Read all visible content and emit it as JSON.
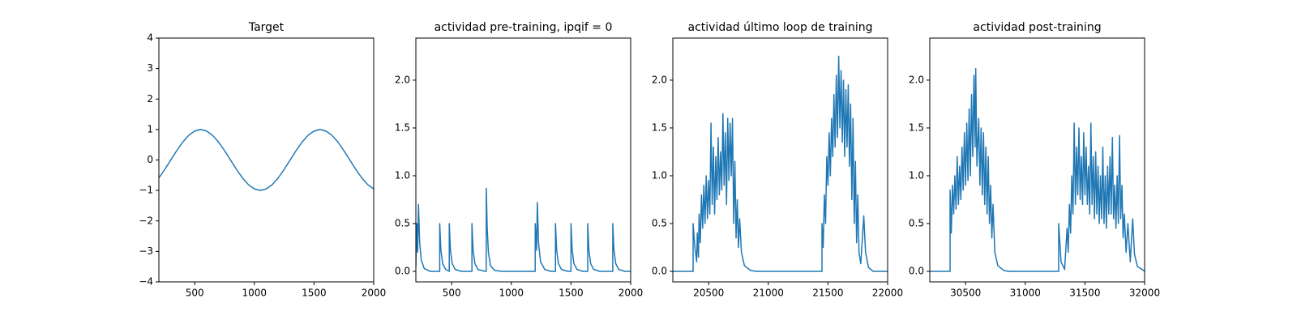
{
  "chart_data": [
    {
      "type": "line",
      "title": "Target",
      "color": "#1f77b4",
      "x": [
        200,
        250,
        300,
        350,
        400,
        450,
        500,
        550,
        600,
        650,
        700,
        750,
        800,
        850,
        900,
        950,
        1000,
        1050,
        1100,
        1150,
        1200,
        1250,
        1300,
        1350,
        1400,
        1450,
        1500,
        1550,
        1600,
        1650,
        1700,
        1750,
        1800,
        1850,
        1900,
        1950,
        2000
      ],
      "values": [
        -0.588,
        -0.309,
        0,
        0.309,
        0.588,
        0.809,
        0.951,
        1,
        0.951,
        0.809,
        0.588,
        0.309,
        0,
        -0.309,
        -0.588,
        -0.809,
        -0.951,
        -1,
        -0.951,
        -0.809,
        -0.588,
        -0.309,
        0,
        0.309,
        0.588,
        0.809,
        0.951,
        1,
        0.951,
        0.809,
        0.588,
        0.309,
        0,
        -0.309,
        -0.588,
        -0.809,
        -0.951
      ],
      "xlim": [
        200,
        2000
      ],
      "xticks": [
        500,
        1000,
        1500,
        2000
      ],
      "ylim": [
        -4,
        4
      ],
      "yticks": [
        {
          "value": -4,
          "label": "−4"
        },
        {
          "value": -3,
          "label": "−3"
        },
        {
          "value": -2,
          "label": "−2"
        },
        {
          "value": -1,
          "label": "−1"
        },
        0,
        1,
        2,
        3,
        4
      ]
    },
    {
      "type": "line",
      "title": "actividad pre-training, ipqif = 0",
      "color": "#1f77b4",
      "x": [
        200,
        208,
        215,
        222,
        232,
        245,
        270,
        320,
        400,
        400,
        410,
        425,
        450,
        480,
        480,
        490,
        505,
        530,
        580,
        670,
        670,
        680,
        695,
        720,
        780,
        790,
        790,
        798,
        808,
        825,
        860,
        920,
        1200,
        1200,
        1212,
        1218,
        1228,
        1245,
        1280,
        1330,
        1370,
        1370,
        1380,
        1395,
        1420,
        1470,
        1500,
        1500,
        1510,
        1525,
        1550,
        1600,
        1640,
        1640,
        1650,
        1665,
        1690,
        1740,
        1850,
        1850,
        1860,
        1875,
        1900,
        1950,
        2000
      ],
      "values": [
        0.05,
        0.5,
        0.2,
        0.7,
        0.3,
        0.12,
        0.03,
        0,
        0,
        0.5,
        0.22,
        0.08,
        0.02,
        0,
        0.5,
        0.22,
        0.08,
        0.02,
        0,
        0,
        0.5,
        0.22,
        0.08,
        0.02,
        0,
        0,
        0.87,
        0.45,
        0.2,
        0.06,
        0.01,
        0,
        0,
        0.5,
        0.22,
        0.72,
        0.3,
        0.1,
        0.02,
        0,
        0,
        0.5,
        0.22,
        0.08,
        0.02,
        0,
        0,
        0.5,
        0.22,
        0.08,
        0.02,
        0,
        0,
        0.5,
        0.22,
        0.08,
        0.02,
        0,
        0,
        0.5,
        0.22,
        0.08,
        0.02,
        0,
        0
      ],
      "xlim": [
        200,
        2000
      ],
      "xticks": [
        500,
        1000,
        1500,
        2000
      ],
      "ylim": [
        -0.11,
        2.44
      ],
      "yticks": [
        {
          "value": 0,
          "label": "0.0"
        },
        {
          "value": 0.5,
          "label": "0.5"
        },
        {
          "value": 1,
          "label": "1.0"
        },
        {
          "value": 1.5,
          "label": "1.5"
        },
        {
          "value": 2,
          "label": "2.0"
        }
      ]
    },
    {
      "type": "line",
      "title": "actividad último loop de training",
      "color": "#1f77b4",
      "x": [
        20200,
        20370,
        20370,
        20385,
        20400,
        20405,
        20415,
        20420,
        20430,
        20440,
        20450,
        20460,
        20470,
        20480,
        20490,
        20500,
        20510,
        20520,
        20530,
        20540,
        20550,
        20560,
        20570,
        20580,
        20590,
        20600,
        20610,
        20620,
        20630,
        20640,
        20650,
        20660,
        20670,
        20680,
        20690,
        20700,
        20710,
        20720,
        20730,
        20740,
        20750,
        20760,
        20775,
        20800,
        20850,
        20900,
        21450,
        21450,
        21460,
        21470,
        21480,
        21490,
        21500,
        21510,
        21520,
        21530,
        21540,
        21550,
        21560,
        21570,
        21580,
        21590,
        21600,
        21610,
        21620,
        21630,
        21640,
        21650,
        21660,
        21670,
        21680,
        21690,
        21700,
        21710,
        21720,
        21730,
        21740,
        21750,
        21760,
        21775,
        21800,
        21815,
        21840,
        21880,
        22000
      ],
      "values": [
        0,
        0,
        0.5,
        0.25,
        0.1,
        0.4,
        0.15,
        0.6,
        0.3,
        0.8,
        0.45,
        0.9,
        0.5,
        1.0,
        0.55,
        0.95,
        0.6,
        1.55,
        0.7,
        1.3,
        0.6,
        1.2,
        0.75,
        1.4,
        0.8,
        1.25,
        0.85,
        1.65,
        0.9,
        1.45,
        0.7,
        1.6,
        0.95,
        1.55,
        1.0,
        1.6,
        0.5,
        1.15,
        0.35,
        0.75,
        0.25,
        0.55,
        0.2,
        0.06,
        0.01,
        0,
        0,
        0.5,
        0.25,
        0.8,
        0.5,
        1.2,
        0.9,
        1.45,
        1.0,
        1.6,
        1.2,
        1.85,
        1.3,
        2.05,
        1.4,
        2.25,
        1.5,
        2.1,
        1.35,
        2.0,
        1.2,
        1.9,
        1.3,
        1.95,
        1.1,
        1.75,
        0.75,
        1.6,
        0.5,
        1.15,
        0.3,
        0.8,
        0.2,
        0.08,
        0.58,
        0.2,
        0.04,
        0,
        0
      ],
      "xlim": [
        20200,
        22000
      ],
      "xticks": [
        20500,
        21000,
        21500,
        22000
      ],
      "ylim": [
        -0.11,
        2.44
      ],
      "yticks": [
        {
          "value": 0,
          "label": "0.0"
        },
        {
          "value": 0.5,
          "label": "0.5"
        },
        {
          "value": 1,
          "label": "1.0"
        },
        {
          "value": 1.5,
          "label": "1.5"
        },
        {
          "value": 2,
          "label": "2.0"
        }
      ]
    },
    {
      "type": "line",
      "title": "actividad post-training",
      "color": "#1f77b4",
      "x": [
        30200,
        30370,
        30370,
        30380,
        30390,
        30400,
        30410,
        30420,
        30430,
        30440,
        30450,
        30460,
        30470,
        30480,
        30490,
        30500,
        30510,
        30520,
        30530,
        30540,
        30550,
        30560,
        30570,
        30580,
        30585,
        30595,
        30610,
        30620,
        30630,
        30640,
        30650,
        30660,
        30670,
        30680,
        30690,
        30700,
        30710,
        30720,
        30730,
        30745,
        30770,
        30820,
        30860,
        31280,
        31280,
        31300,
        31330,
        31350,
        31360,
        31370,
        31380,
        31390,
        31400,
        31410,
        31420,
        31430,
        31440,
        31450,
        31460,
        31470,
        31480,
        31490,
        31500,
        31510,
        31520,
        31530,
        31540,
        31550,
        31560,
        31570,
        31580,
        31590,
        31600,
        31610,
        31620,
        31630,
        31640,
        31650,
        31660,
        31670,
        31680,
        31690,
        31700,
        31710,
        31720,
        31730,
        31740,
        31750,
        31760,
        31770,
        31780,
        31790,
        31800,
        31810,
        31820,
        31830,
        31845,
        31860,
        31880,
        31900,
        31915,
        31940,
        31980,
        32000
      ],
      "values": [
        0,
        0,
        0.85,
        0.4,
        0.9,
        0.6,
        1.0,
        0.65,
        1.2,
        0.7,
        1.1,
        0.75,
        1.3,
        0.85,
        1.45,
        0.9,
        1.55,
        0.95,
        1.7,
        1.0,
        1.85,
        1.2,
        2.05,
        1.3,
        2.12,
        1.1,
        1.6,
        0.9,
        1.5,
        0.8,
        1.45,
        0.7,
        1.3,
        0.6,
        1.2,
        0.5,
        0.9,
        0.35,
        0.7,
        0.2,
        0.06,
        0.01,
        0,
        0,
        0.5,
        0.1,
        0.02,
        0.45,
        0.2,
        0.7,
        0.4,
        1.0,
        0.6,
        1.55,
        0.7,
        1.3,
        0.8,
        1.5,
        0.75,
        1.2,
        0.7,
        1.45,
        0.8,
        1.3,
        0.7,
        1.1,
        0.6,
        1.55,
        0.7,
        1.2,
        0.55,
        1.25,
        0.6,
        1.1,
        0.5,
        1.0,
        0.55,
        1.3,
        0.5,
        1.0,
        0.45,
        1.1,
        0.6,
        1.2,
        0.6,
        1.4,
        0.55,
        0.9,
        0.45,
        1.0,
        0.5,
        1.42,
        0.55,
        0.9,
        0.35,
        0.6,
        0.2,
        0.5,
        0.1,
        0.55,
        0.18,
        0.05,
        0.02,
        0
      ],
      "xlim": [
        30200,
        32000
      ],
      "xticks": [
        30500,
        31000,
        31500,
        32000
      ],
      "ylim": [
        -0.11,
        2.44
      ],
      "yticks": [
        {
          "value": 0,
          "label": "0.0"
        },
        {
          "value": 0.5,
          "label": "0.5"
        },
        {
          "value": 1,
          "label": "1.0"
        },
        {
          "value": 1.5,
          "label": "1.5"
        },
        {
          "value": 2,
          "label": "2.0"
        }
      ]
    }
  ]
}
